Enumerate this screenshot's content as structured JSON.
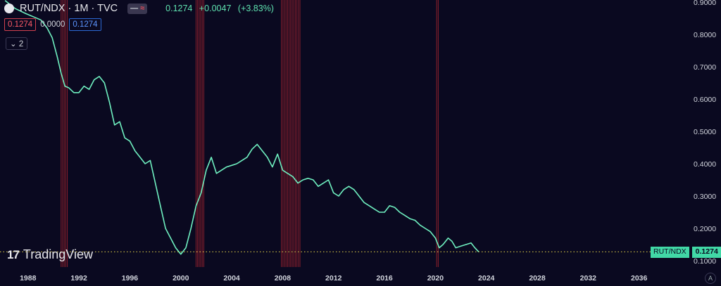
{
  "header": {
    "symbol": "RUT/NDX · 1M · TVC",
    "toggle_a": "—",
    "toggle_b": "≈",
    "last": "0.1274",
    "change": "+0.0047",
    "change_pct": "(+3.83%)"
  },
  "ohlc_boxes": {
    "sell": "0.1274",
    "spread": "0.0000",
    "buy": "0.1274"
  },
  "collapse_label": "2",
  "logo_text": "TradingView",
  "price_label": {
    "name": "RUT/NDX",
    "value": "0.1274"
  },
  "auto_label": "A",
  "colors": {
    "background": "#0a0920",
    "line": "#6ff0c0",
    "recession": "#8b1f2c",
    "price_line": "#e8d84a"
  },
  "chart_data": {
    "type": "line",
    "title": "",
    "xlabel": "",
    "ylabel": "",
    "xlim": [
      1985.8,
      2040.0
    ],
    "ylim": [
      0.1,
      0.9
    ],
    "x_ticks": [
      1988,
      1992,
      1996,
      2000,
      2004,
      2008,
      2012,
      2016,
      2020,
      2024,
      2028,
      2032,
      2036
    ],
    "x_tick_labels": [
      "1988",
      "1992",
      "1996",
      "2000",
      "2004",
      "2008",
      "2012",
      "2016",
      "2020",
      "2024",
      "2028",
      "2032",
      "2036"
    ],
    "y_ticks": [
      0.1,
      0.2,
      0.3,
      0.4,
      0.5,
      0.6,
      0.7,
      0.8,
      0.9
    ],
    "y_tick_labels": [
      "0.1000",
      "0.2000",
      "0.3000",
      "0.4000",
      "0.5000",
      "0.6000",
      "0.7000",
      "0.8000",
      "0.9000"
    ],
    "current_value": 0.1274,
    "recessions": [
      [
        1990.6,
        1991.2
      ],
      [
        2001.2,
        2001.9
      ],
      [
        2007.9,
        2009.4
      ],
      [
        2020.1,
        2020.3
      ]
    ],
    "series": [
      {
        "x": [
          1986.2,
          1987.0,
          1987.8,
          1988.4,
          1989.0,
          1989.5,
          1989.9,
          1990.3,
          1990.6,
          1990.9,
          1991.2,
          1991.6,
          1992.0,
          1992.4,
          1992.8,
          1993.2,
          1993.6,
          1994.0,
          1994.4,
          1994.8,
          1995.2,
          1995.6,
          1996.0,
          1996.4,
          1996.8,
          1997.2,
          1997.6,
          1998.0,
          1998.4,
          1998.8,
          1999.2,
          1999.6,
          2000.0,
          2000.4,
          2000.8,
          2001.2,
          2001.6,
          2002.0,
          2002.4,
          2002.8,
          2003.2,
          2003.6,
          2004.0,
          2004.4,
          2004.8,
          2005.2,
          2005.6,
          2006.0,
          2006.4,
          2006.8,
          2007.2,
          2007.6,
          2008.0,
          2008.4,
          2008.8,
          2009.2,
          2009.6,
          2010.0,
          2010.4,
          2010.8,
          2011.2,
          2011.6,
          2012.0,
          2012.4,
          2012.8,
          2013.2,
          2013.6,
          2014.0,
          2014.4,
          2014.8,
          2015.2,
          2015.6,
          2016.0,
          2016.4,
          2016.8,
          2017.2,
          2017.6,
          2018.0,
          2018.4,
          2018.8,
          2019.2,
          2019.6,
          2020.0,
          2020.3,
          2020.6,
          2021.0,
          2021.3,
          2021.6,
          2022.0,
          2022.4,
          2022.8,
          2023.1,
          2023.4
        ],
        "y": [
          0.905,
          0.88,
          0.865,
          0.855,
          0.845,
          0.82,
          0.79,
          0.73,
          0.68,
          0.64,
          0.635,
          0.62,
          0.62,
          0.64,
          0.63,
          0.66,
          0.67,
          0.65,
          0.59,
          0.52,
          0.53,
          0.48,
          0.47,
          0.44,
          0.42,
          0.4,
          0.41,
          0.34,
          0.27,
          0.2,
          0.17,
          0.14,
          0.12,
          0.14,
          0.2,
          0.27,
          0.31,
          0.38,
          0.42,
          0.37,
          0.38,
          0.39,
          0.395,
          0.4,
          0.41,
          0.42,
          0.445,
          0.46,
          0.44,
          0.42,
          0.39,
          0.43,
          0.38,
          0.37,
          0.36,
          0.34,
          0.35,
          0.355,
          0.35,
          0.33,
          0.34,
          0.35,
          0.31,
          0.3,
          0.32,
          0.33,
          0.32,
          0.3,
          0.28,
          0.27,
          0.26,
          0.25,
          0.25,
          0.27,
          0.265,
          0.25,
          0.24,
          0.23,
          0.225,
          0.21,
          0.2,
          0.19,
          0.17,
          0.14,
          0.15,
          0.17,
          0.16,
          0.14,
          0.145,
          0.15,
          0.155,
          0.14,
          0.1274
        ]
      }
    ]
  }
}
